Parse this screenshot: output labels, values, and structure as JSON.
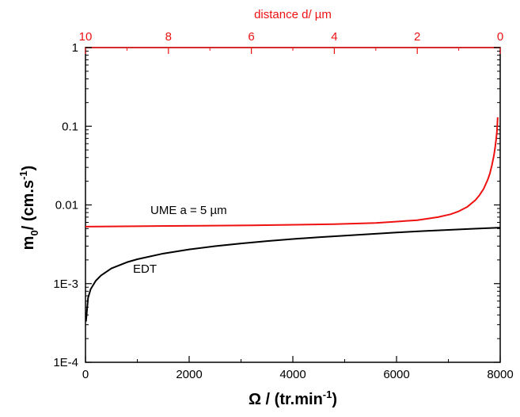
{
  "chart_data": {
    "type": "line",
    "colors": {
      "primary": "#000000",
      "secondary": "#ee1111"
    },
    "x_bottom": {
      "min": 0,
      "max": 8000,
      "ticks": [
        0,
        2000,
        4000,
        6000,
        8000
      ],
      "tick_labels": [
        "0",
        "2000",
        "4000",
        "6000",
        "8000"
      ],
      "label": "Ω / (tr.min",
      "label_sup": "-1",
      "label_tail": ")"
    },
    "x_top": {
      "min": 10,
      "max": 0,
      "ticks": [
        10,
        8,
        6,
        4,
        2,
        0
      ],
      "tick_labels": [
        "10",
        "8",
        "6",
        "4",
        "2",
        "0"
      ],
      "label": "distance d/ µm"
    },
    "y": {
      "scale": "log",
      "min": 0.0001,
      "max": 1,
      "ticks": [
        0.0001,
        0.001,
        0.01,
        0.1,
        1
      ],
      "tick_labels": [
        "1E-4",
        "1E-3",
        "0.01",
        "0.1",
        "1"
      ],
      "label": "m",
      "label_sub": "0",
      "label_mid": "/ (cm.s",
      "label_sup": "-1",
      "label_tail": ")"
    },
    "series": [
      {
        "name": "EDT",
        "axis": "bottom",
        "color": "#000000",
        "x": [
          10,
          50,
          100,
          200,
          300,
          500,
          800,
          1000,
          1500,
          2000,
          2500,
          3000,
          3500,
          4000,
          4500,
          5000,
          5500,
          6000,
          6500,
          7000,
          7500,
          8000
        ],
        "y": [
          0.00033,
          0.00066,
          0.00085,
          0.00109,
          0.00127,
          0.00156,
          0.00187,
          0.00204,
          0.00241,
          0.00272,
          0.00299,
          0.00324,
          0.00347,
          0.00369,
          0.00389,
          0.00407,
          0.00426,
          0.00446,
          0.00465,
          0.00482,
          0.00498,
          0.00515
        ]
      },
      {
        "name": "UME a = 5 µm",
        "axis": "top",
        "color": "#ee1111",
        "x": [
          10,
          8,
          6,
          4,
          3,
          2,
          1.5,
          1.2,
          1.0,
          0.8,
          0.6,
          0.5,
          0.4,
          0.3,
          0.25,
          0.2,
          0.15,
          0.12,
          0.1,
          0.08,
          0.06
        ],
        "y": [
          0.0053,
          0.0054,
          0.0055,
          0.0057,
          0.0059,
          0.0064,
          0.007,
          0.0076,
          0.0083,
          0.0094,
          0.0115,
          0.0133,
          0.016,
          0.021,
          0.025,
          0.032,
          0.043,
          0.055,
          0.067,
          0.085,
          0.13
        ]
      }
    ],
    "annotations": [
      {
        "text": "UME a = 5 µm",
        "color": "#ee1111"
      },
      {
        "text": "EDT",
        "color": "#000000"
      }
    ]
  }
}
